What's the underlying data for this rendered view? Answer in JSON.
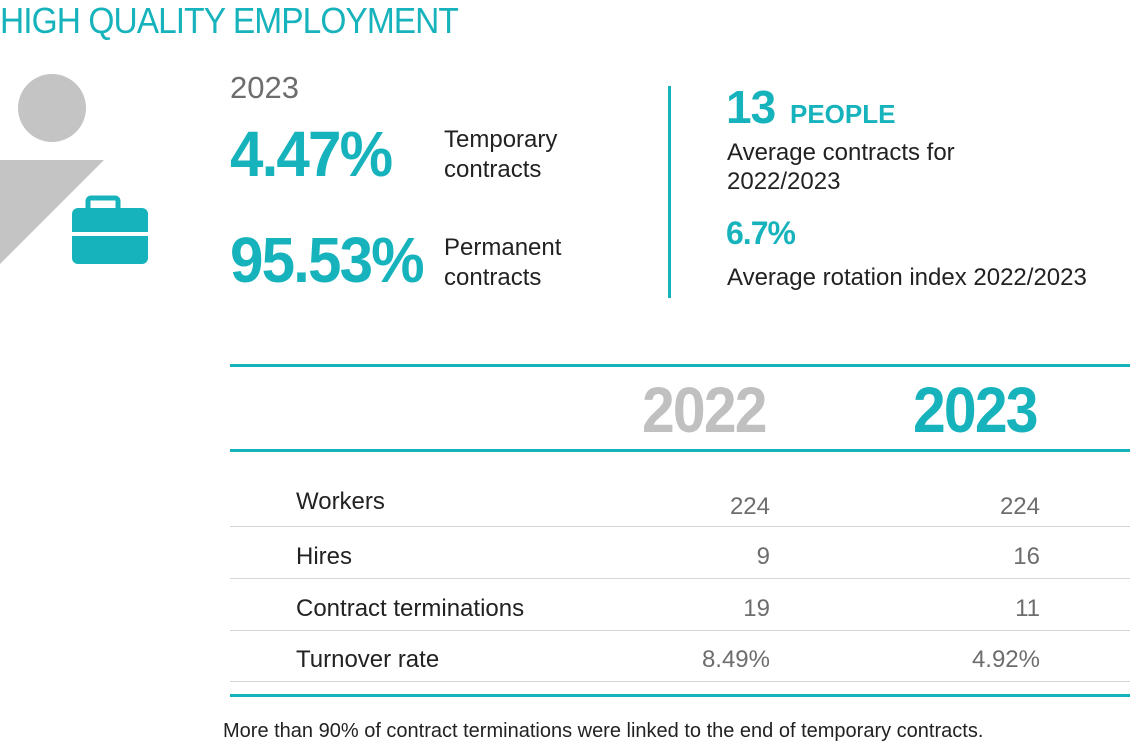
{
  "title": "HIGH QUALITY EMPLOYMENT",
  "year_label": "2023",
  "colors": {
    "accent": "#17b3bc",
    "gray_icon": "#c4c4c4",
    "gray_text": "#6d6d6d",
    "year_2022": "#c0c0c0"
  },
  "icons": {
    "person": "person-icon",
    "briefcase": "briefcase-icon"
  },
  "temporary": {
    "value": "4.47%",
    "label_line1": "Temporary",
    "label_line2": "contracts"
  },
  "permanent": {
    "value": "95.53%",
    "label_line1": "Permanent",
    "label_line2": "contracts"
  },
  "people": {
    "value": "13",
    "unit": "PEOPLE",
    "desc_line1": "Average contracts for",
    "desc_line2": "2022/2023"
  },
  "rotation": {
    "value": "6.7%",
    "desc": "Average rotation index 2022/2023"
  },
  "table": {
    "headers": [
      "2022",
      "2023"
    ],
    "rows": [
      {
        "label": "Workers",
        "v2022": "224",
        "v2023": "224"
      },
      {
        "label": "Hires",
        "v2022": "9",
        "v2023": "16"
      },
      {
        "label": "Contract terminations",
        "v2022": "19",
        "v2023": "11"
      },
      {
        "label": "Turnover rate",
        "v2022": "8.49%",
        "v2023": "4.92%"
      }
    ]
  },
  "footnote": "More than 90% of contract terminations were linked to the end of temporary contracts."
}
